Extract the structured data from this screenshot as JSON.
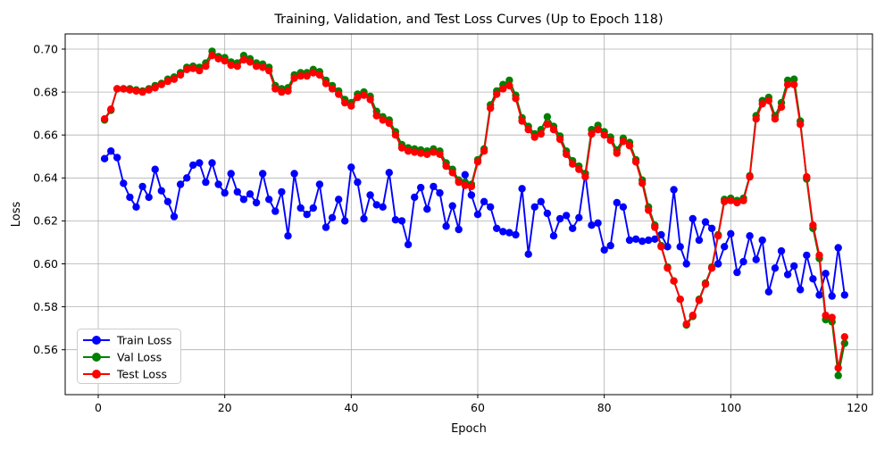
{
  "chart_data": {
    "type": "line",
    "title": "Training, Validation, and Test Loss Curves (Up to Epoch 118)",
    "xlabel": "Epoch",
    "ylabel": "Loss",
    "x_range": [
      1,
      118
    ],
    "x_ticks": [
      0,
      20,
      40,
      60,
      80,
      100,
      120
    ],
    "y_ticks": [
      "0.56",
      "0.58",
      "0.60",
      "0.62",
      "0.64",
      "0.66",
      "0.68",
      "0.70"
    ],
    "xlim": [
      -4.85,
      123.85
    ],
    "ylim": [
      0.5392,
      0.7071
    ],
    "grid": true,
    "legend_position": "lower left",
    "series": [
      {
        "name": "Train Loss",
        "color": "#0000ff",
        "values": [
          0.649,
          0.6525,
          0.6495,
          0.6375,
          0.631,
          0.6265,
          0.636,
          0.631,
          0.644,
          0.634,
          0.629,
          0.622,
          0.637,
          0.64,
          0.646,
          0.647,
          0.638,
          0.647,
          0.637,
          0.633,
          0.642,
          0.6335,
          0.63,
          0.6325,
          0.6285,
          0.642,
          0.63,
          0.6245,
          0.6335,
          0.613,
          0.642,
          0.626,
          0.623,
          0.626,
          0.637,
          0.617,
          0.6215,
          0.63,
          0.62,
          0.645,
          0.638,
          0.621,
          0.632,
          0.6275,
          0.6265,
          0.6425,
          0.6205,
          0.62,
          0.609,
          0.631,
          0.6355,
          0.6255,
          0.636,
          0.633,
          0.6175,
          0.627,
          0.616,
          0.6415,
          0.632,
          0.623,
          0.629,
          0.6265,
          0.6165,
          0.615,
          0.6145,
          0.6135,
          0.635,
          0.6045,
          0.6265,
          0.629,
          0.6235,
          0.613,
          0.621,
          0.6225,
          0.6165,
          0.6215,
          0.642,
          0.618,
          0.619,
          0.6065,
          0.6085,
          0.6285,
          0.6265,
          0.611,
          0.6115,
          0.6105,
          0.611,
          0.6115,
          0.6135,
          0.608,
          0.6345,
          0.608,
          0.6,
          0.621,
          0.611,
          0.6195,
          0.6165,
          0.6,
          0.608,
          0.614,
          0.596,
          0.601,
          0.613,
          0.602,
          0.611,
          0.587,
          0.598,
          0.606,
          0.595,
          0.599,
          0.588,
          0.604,
          0.593,
          0.5855,
          0.5955,
          0.585,
          0.6075,
          0.5855
        ]
      },
      {
        "name": "Val Loss",
        "color": "#008000",
        "values": [
          0.667,
          0.6715,
          0.6815,
          0.6815,
          0.6815,
          0.681,
          0.6805,
          0.6815,
          0.683,
          0.684,
          0.686,
          0.687,
          0.689,
          0.6915,
          0.692,
          0.6915,
          0.6935,
          0.699,
          0.6965,
          0.696,
          0.694,
          0.6935,
          0.697,
          0.6955,
          0.6935,
          0.693,
          0.6915,
          0.683,
          0.6815,
          0.682,
          0.688,
          0.689,
          0.689,
          0.6905,
          0.6895,
          0.6855,
          0.683,
          0.6805,
          0.6765,
          0.675,
          0.679,
          0.68,
          0.678,
          0.671,
          0.6685,
          0.667,
          0.6615,
          0.6555,
          0.654,
          0.6535,
          0.653,
          0.6525,
          0.6535,
          0.6525,
          0.647,
          0.644,
          0.639,
          0.638,
          0.637,
          0.6485,
          0.6535,
          0.674,
          0.6805,
          0.6835,
          0.6855,
          0.6785,
          0.668,
          0.664,
          0.6605,
          0.6625,
          0.6685,
          0.664,
          0.6595,
          0.6525,
          0.648,
          0.6455,
          0.642,
          0.6625,
          0.6645,
          0.6615,
          0.659,
          0.653,
          0.6585,
          0.6565,
          0.6485,
          0.639,
          0.6265,
          0.618,
          0.6085,
          0.5985,
          0.592,
          0.5835,
          0.5715,
          0.5755,
          0.5835,
          0.591,
          0.5985,
          0.6135,
          0.63,
          0.6305,
          0.6295,
          0.6305,
          0.641,
          0.669,
          0.676,
          0.6775,
          0.669,
          0.675,
          0.6855,
          0.686,
          0.6665,
          0.6395,
          0.6165,
          0.6025,
          0.574,
          0.573,
          0.548,
          0.563
        ]
      },
      {
        "name": "Test Loss",
        "color": "#ff0000",
        "values": [
          0.6675,
          0.672,
          0.6815,
          0.6815,
          0.681,
          0.6805,
          0.68,
          0.681,
          0.682,
          0.6835,
          0.685,
          0.686,
          0.688,
          0.6905,
          0.691,
          0.69,
          0.692,
          0.697,
          0.6955,
          0.6945,
          0.6925,
          0.692,
          0.695,
          0.694,
          0.692,
          0.6915,
          0.69,
          0.6815,
          0.68,
          0.6805,
          0.6865,
          0.6875,
          0.6875,
          0.689,
          0.688,
          0.684,
          0.6815,
          0.679,
          0.675,
          0.6735,
          0.6775,
          0.6785,
          0.6765,
          0.669,
          0.667,
          0.6655,
          0.66,
          0.654,
          0.6525,
          0.652,
          0.6515,
          0.651,
          0.652,
          0.651,
          0.6455,
          0.6425,
          0.638,
          0.6365,
          0.636,
          0.6475,
          0.6525,
          0.6725,
          0.679,
          0.6815,
          0.683,
          0.677,
          0.6665,
          0.6625,
          0.659,
          0.6605,
          0.665,
          0.6625,
          0.658,
          0.651,
          0.6465,
          0.644,
          0.6405,
          0.6605,
          0.6625,
          0.66,
          0.6575,
          0.6515,
          0.657,
          0.655,
          0.6475,
          0.6375,
          0.625,
          0.617,
          0.608,
          0.598,
          0.592,
          0.5835,
          0.572,
          0.576,
          0.583,
          0.5905,
          0.598,
          0.613,
          0.629,
          0.6295,
          0.6285,
          0.6295,
          0.6405,
          0.6675,
          0.6745,
          0.676,
          0.6675,
          0.673,
          0.6835,
          0.6835,
          0.665,
          0.6405,
          0.618,
          0.604,
          0.576,
          0.575,
          0.5515,
          0.566
        ]
      }
    ]
  }
}
